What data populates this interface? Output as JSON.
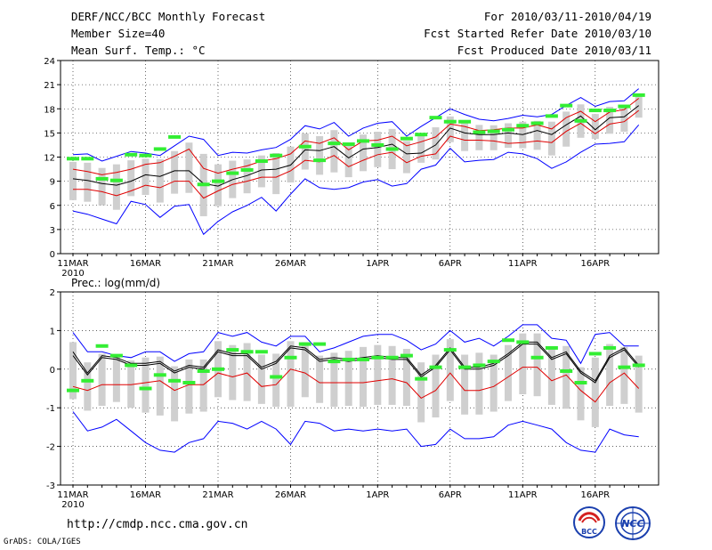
{
  "header": {
    "title": "DERF/NCC/BCC Monthly Forecast",
    "member_size": "Member Size=40",
    "variable": "Mean Surf. Temp.: °C",
    "period": "For 2010/03/11-2010/04/19",
    "refer_date": "Fcst Started Refer Date 2010/03/10",
    "produced_date": "Fcst Produced Date 2010/03/11"
  },
  "footer": {
    "url": "http://cmdp.ncc.cma.gov.cn",
    "credit": "GrADS: COLA/IGES",
    "logo_left_text": "BCC",
    "logo_right_text": "NCC"
  },
  "colors": {
    "blue": "#0000ff",
    "red": "#e00000",
    "black": "#000000",
    "green": "#33ee33",
    "box": "#cfcfcf",
    "grid": "#000000"
  },
  "chart_data": [
    {
      "type": "line",
      "title": "Mean Surf. Temp.: °C",
      "ylim": [
        0,
        24
      ],
      "yticks": [
        0,
        3,
        6,
        9,
        12,
        15,
        18,
        21,
        24
      ],
      "xticks": [
        {
          "day": 1,
          "label": "11MAR",
          "sub": "2010"
        },
        {
          "day": 6,
          "label": "16MAR"
        },
        {
          "day": 11,
          "label": "21MAR"
        },
        {
          "day": 16,
          "label": "26MAR"
        },
        {
          "day": 22,
          "label": "1APR"
        },
        {
          "day": 27,
          "label": "6APR"
        },
        {
          "day": 32,
          "label": "11APR"
        },
        {
          "day": 37,
          "label": "16APR"
        }
      ],
      "series": [
        {
          "name": "max",
          "color": "blue",
          "values": [
            12.3,
            12.4,
            11.5,
            12.1,
            12.7,
            12.5,
            12.2,
            13.4,
            14.6,
            14.2,
            12.2,
            12.6,
            12.5,
            12.9,
            13.2,
            14.2,
            15.9,
            15.5,
            16.3,
            14.6,
            15.6,
            16.2,
            16.4,
            14.6,
            15.8,
            16.9,
            18.0,
            17.3,
            16.7,
            16.5,
            16.8,
            17.2,
            17.0,
            17.3,
            18.4,
            19.4,
            18.3,
            18.9,
            19.0,
            20.5
          ]
        },
        {
          "name": "mean_plus_sd",
          "color": "red",
          "values": [
            10.5,
            10.2,
            9.8,
            10.1,
            10.5,
            11.1,
            11.3,
            12.1,
            13.0,
            10.6,
            10.0,
            10.5,
            10.9,
            11.5,
            11.8,
            12.4,
            14.0,
            13.7,
            14.4,
            12.9,
            14.0,
            14.1,
            14.6,
            13.4,
            13.9,
            14.5,
            16.1,
            15.8,
            15.3,
            15.4,
            15.6,
            15.6,
            16.0,
            15.5,
            16.9,
            17.7,
            16.4,
            17.6,
            17.9,
            19.3
          ]
        },
        {
          "name": "ens_mean",
          "color": "black",
          "values": [
            9.3,
            9.1,
            8.7,
            8.5,
            9.0,
            9.8,
            9.6,
            10.3,
            10.3,
            8.7,
            8.4,
            9.2,
            9.7,
            10.4,
            10.5,
            11.0,
            12.9,
            12.8,
            13.3,
            11.9,
            13.0,
            13.2,
            13.6,
            12.4,
            12.5,
            13.5,
            15.6,
            15.0,
            14.8,
            14.8,
            15.0,
            14.8,
            15.3,
            14.8,
            16.0,
            17.1,
            15.4,
            16.9,
            17.0,
            18.4
          ]
        },
        {
          "name": "mean_minus_sd",
          "color": "red",
          "values": [
            8.0,
            8.0,
            7.7,
            7.2,
            7.8,
            8.5,
            8.2,
            9.0,
            9.0,
            6.9,
            7.8,
            8.6,
            9.0,
            9.5,
            9.5,
            10.3,
            11.6,
            11.4,
            12.2,
            10.8,
            11.6,
            12.3,
            12.6,
            11.3,
            12.1,
            12.4,
            14.6,
            14.1,
            14.1,
            14.0,
            13.7,
            13.8,
            14.0,
            13.8,
            15.2,
            16.2,
            14.9,
            16.1,
            16.4,
            17.8
          ]
        },
        {
          "name": "min",
          "color": "blue",
          "values": [
            5.3,
            4.9,
            4.3,
            3.7,
            6.5,
            6.1,
            4.5,
            5.9,
            6.1,
            2.4,
            4.0,
            5.2,
            6.0,
            7.0,
            5.3,
            7.4,
            9.3,
            8.2,
            8.0,
            8.2,
            8.9,
            9.2,
            8.4,
            8.7,
            10.5,
            11.0,
            13.1,
            11.4,
            11.6,
            11.7,
            12.6,
            12.4,
            11.8,
            10.6,
            11.4,
            12.6,
            13.6,
            13.7,
            13.9,
            16.0
          ]
        },
        {
          "name": "observed",
          "color": "green",
          "values": [
            11.8,
            11.8,
            9.3,
            9.1,
            12.3,
            12.2,
            13.0,
            14.5,
            null,
            8.6,
            9.0,
            10.0,
            10.4,
            11.5,
            12.2,
            null,
            13.3,
            11.6,
            13.7,
            13.6,
            14.0,
            13.5,
            13.0,
            14.3,
            14.8,
            16.9,
            16.4,
            16.4,
            15.1,
            15.2,
            15.4,
            15.9,
            16.2,
            17.1,
            18.4,
            16.5,
            17.8,
            17.8,
            18.3,
            19.7
          ]
        }
      ]
    },
    {
      "type": "line",
      "title": "Prec.: log(mm/d)",
      "ylim": [
        -3,
        2
      ],
      "yticks": [
        -3,
        -2,
        -1,
        0,
        1,
        2
      ],
      "xticks": [
        {
          "day": 1,
          "label": "11MAR",
          "sub": "2010"
        },
        {
          "day": 6,
          "label": "16MAR"
        },
        {
          "day": 11,
          "label": "21MAR"
        },
        {
          "day": 16,
          "label": "26MAR"
        },
        {
          "day": 22,
          "label": "1APR"
        },
        {
          "day": 27,
          "label": "6APR"
        },
        {
          "day": 32,
          "label": "11APR"
        },
        {
          "day": 37,
          "label": "16APR"
        }
      ],
      "series": [
        {
          "name": "max",
          "color": "blue",
          "values": [
            0.95,
            0.45,
            0.45,
            0.35,
            0.3,
            0.45,
            0.45,
            0.2,
            0.4,
            0.45,
            0.95,
            0.85,
            0.95,
            0.7,
            0.6,
            0.85,
            0.85,
            0.45,
            0.55,
            0.7,
            0.85,
            0.9,
            0.9,
            0.75,
            0.5,
            0.65,
            1.0,
            0.7,
            0.8,
            0.6,
            0.85,
            1.15,
            1.15,
            0.8,
            0.75,
            0.15,
            0.9,
            0.95,
            0.6,
            0.6
          ]
        },
        {
          "name": "mean_plus_sd",
          "color": "black",
          "values": [
            0.45,
            -0.1,
            0.35,
            0.3,
            0.15,
            0.15,
            0.2,
            -0.05,
            0.1,
            0.05,
            0.5,
            0.4,
            0.4,
            0.05,
            0.2,
            0.6,
            0.55,
            0.25,
            0.3,
            0.25,
            0.3,
            0.35,
            0.3,
            0.3,
            -0.15,
            0.1,
            0.55,
            0.05,
            0.05,
            0.15,
            0.4,
            0.7,
            0.7,
            0.3,
            0.45,
            -0.05,
            -0.3,
            0.35,
            0.55,
            0.1
          ]
        },
        {
          "name": "ens_mean",
          "color": "black",
          "values": [
            0.35,
            -0.15,
            0.3,
            0.25,
            0.1,
            0.1,
            0.15,
            -0.1,
            0.05,
            0.0,
            0.45,
            0.35,
            0.35,
            0.0,
            0.15,
            0.55,
            0.5,
            0.2,
            0.25,
            0.2,
            0.25,
            0.3,
            0.25,
            0.25,
            -0.2,
            0.05,
            0.5,
            0.0,
            0.0,
            0.1,
            0.35,
            0.65,
            0.65,
            0.25,
            0.4,
            -0.1,
            -0.35,
            0.3,
            0.5,
            0.05
          ]
        },
        {
          "name": "mean_minus_sd",
          "color": "red",
          "values": [
            -0.45,
            -0.55,
            -0.4,
            -0.4,
            -0.4,
            -0.35,
            -0.3,
            -0.55,
            -0.4,
            -0.4,
            -0.1,
            -0.2,
            -0.1,
            -0.45,
            -0.4,
            0.0,
            -0.1,
            -0.35,
            -0.35,
            -0.35,
            -0.35,
            -0.3,
            -0.25,
            -0.35,
            -0.75,
            -0.55,
            -0.1,
            -0.55,
            -0.55,
            -0.45,
            -0.2,
            0.05,
            0.05,
            -0.3,
            -0.15,
            -0.55,
            -0.85,
            -0.35,
            -0.1,
            -0.5
          ]
        },
        {
          "name": "min",
          "color": "blue",
          "values": [
            -1.1,
            -1.6,
            -1.5,
            -1.3,
            -1.6,
            -1.9,
            -2.1,
            -2.15,
            -1.9,
            -1.8,
            -1.35,
            -1.4,
            -1.55,
            -1.35,
            -1.55,
            -1.95,
            -1.35,
            -1.4,
            -1.6,
            -1.55,
            -1.6,
            -1.55,
            -1.6,
            -1.55,
            -2.0,
            -1.95,
            -1.55,
            -1.8,
            -1.8,
            -1.75,
            -1.45,
            -1.35,
            -1.45,
            -1.55,
            -1.9,
            -2.1,
            -2.15,
            -1.55,
            -1.7,
            -1.75
          ]
        },
        {
          "name": "observed",
          "color": "green",
          "values": [
            -0.55,
            -0.3,
            0.6,
            0.35,
            0.1,
            -0.5,
            -0.15,
            -0.3,
            -0.35,
            -0.05,
            0.0,
            0.5,
            0.45,
            0.45,
            -0.2,
            0.3,
            0.65,
            0.65,
            0.2,
            0.25,
            0.25,
            0.3,
            0.3,
            0.35,
            -0.25,
            0.05,
            0.5,
            0.05,
            0.1,
            0.2,
            0.75,
            0.7,
            0.3,
            0.55,
            -0.05,
            -0.35,
            0.4,
            0.55,
            0.05,
            0.1
          ]
        }
      ]
    }
  ]
}
